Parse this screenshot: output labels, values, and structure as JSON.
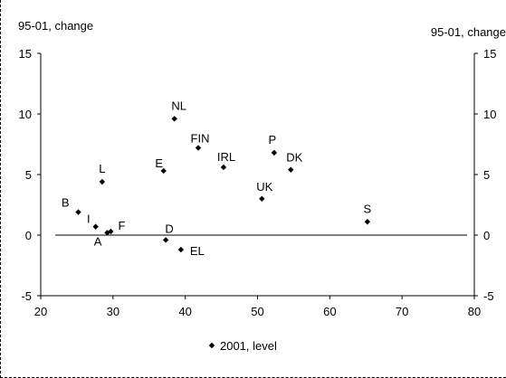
{
  "chart_data": {
    "type": "scatter",
    "title": "",
    "xlabel": "",
    "ylabel_left": "95-01, change",
    "ylabel_right": "95-01, change",
    "xlim": [
      20,
      80
    ],
    "ylim": [
      -5,
      15
    ],
    "x_ticks": [
      20,
      30,
      40,
      50,
      60,
      70,
      80
    ],
    "y_ticks": [
      -5,
      0,
      5,
      10,
      15
    ],
    "zero_line": {
      "y": 0,
      "x_from": 22,
      "x_to": 79
    },
    "grid": false,
    "legend": {
      "position": "bottom",
      "label": "2001, level"
    },
    "points": [
      {
        "label": "B",
        "x": 25.2,
        "y": 1.9
      },
      {
        "label": "I",
        "x": 27.6,
        "y": 0.7
      },
      {
        "label": "A",
        "x": 29.2,
        "y": 0.2
      },
      {
        "label": "F",
        "x": 29.7,
        "y": 0.3
      },
      {
        "label": "L",
        "x": 28.5,
        "y": 4.4
      },
      {
        "label": "E",
        "x": 37.0,
        "y": 5.3
      },
      {
        "label": "D",
        "x": 37.3,
        "y": -0.4
      },
      {
        "label": "EL",
        "x": 39.4,
        "y": -1.2
      },
      {
        "label": "NL",
        "x": 38.5,
        "y": 9.6
      },
      {
        "label": "FIN",
        "x": 41.8,
        "y": 7.2
      },
      {
        "label": "IRL",
        "x": 45.3,
        "y": 5.6
      },
      {
        "label": "UK",
        "x": 50.6,
        "y": 3.0
      },
      {
        "label": "P",
        "x": 52.3,
        "y": 6.8
      },
      {
        "label": "DK",
        "x": 54.6,
        "y": 5.4
      },
      {
        "label": "S",
        "x": 65.2,
        "y": 1.1
      }
    ]
  }
}
